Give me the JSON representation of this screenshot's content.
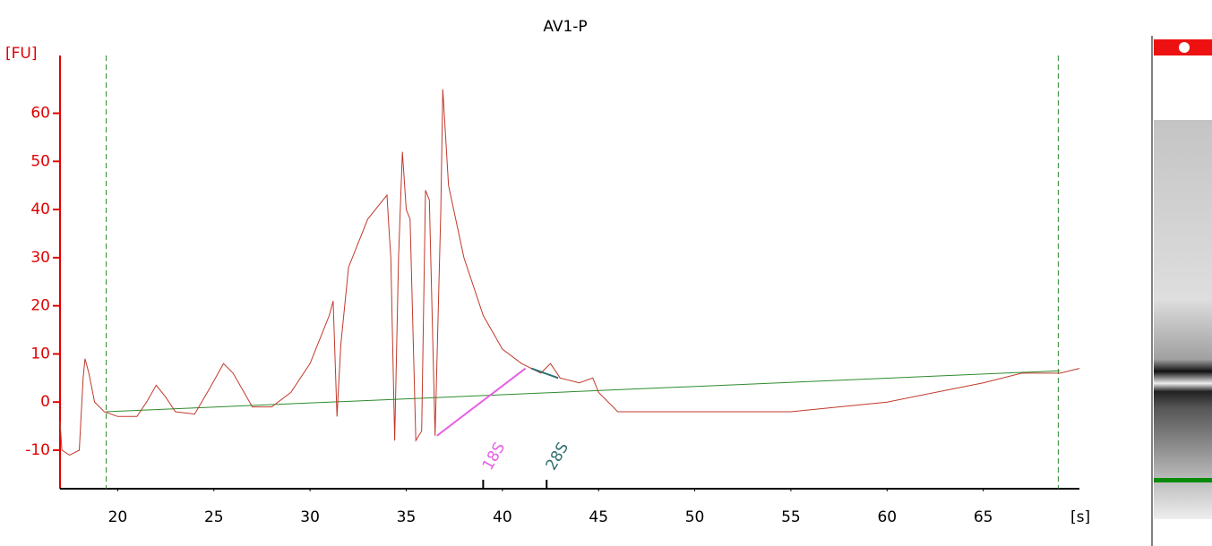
{
  "chart_data": {
    "type": "line",
    "title": "AV1-P",
    "xlabel": "[s]",
    "ylabel": "[FU]",
    "x": [
      17.0,
      17.1,
      17.5,
      18.0,
      18.2,
      18.3,
      18.5,
      18.8,
      19.3,
      20,
      21,
      21.5,
      22,
      22.5,
      23,
      24,
      24.8,
      25.5,
      26,
      27,
      28,
      29,
      30,
      31,
      31.2,
      31.4,
      31.6,
      32,
      33,
      33.8,
      34.0,
      34.1,
      34.2,
      34.4,
      34.6,
      34.8,
      35.0,
      35.2,
      35.5,
      35.8,
      36.0,
      36.2,
      36.5,
      36.8,
      36.9,
      37.2,
      38,
      39,
      40,
      41,
      41.5,
      42,
      42.5,
      43,
      44,
      44.7,
      45,
      46,
      47,
      50,
      55,
      60,
      65,
      67,
      69,
      70
    ],
    "values": [
      -4,
      -10,
      -11,
      -10,
      5,
      9,
      6,
      0,
      -2,
      -3,
      -3,
      0,
      3.5,
      1,
      -2,
      -2.5,
      3,
      8,
      6,
      -1,
      -1,
      2,
      8,
      18,
      21,
      -3,
      12,
      28,
      38,
      42,
      43,
      36,
      30,
      -8,
      30,
      52,
      40,
      38,
      -8,
      -6,
      44,
      42,
      -7,
      40,
      65,
      45,
      30,
      18,
      11,
      8,
      7,
      6,
      8,
      5,
      4,
      5,
      2,
      -2,
      -2,
      -2,
      -2,
      0,
      4,
      6,
      6,
      7
    ],
    "color": "#c0392b",
    "baseline": {
      "x": [
        19.4,
        69
      ],
      "values": [
        -2,
        6.5
      ],
      "color": "#2e8b2e"
    },
    "segments": [
      {
        "x": [
          36.6,
          41.2
        ],
        "values": [
          -7,
          7
        ],
        "color": "#e75fe7"
      },
      {
        "x": [
          41.5,
          42.9
        ],
        "values": [
          7,
          5
        ],
        "color": "#2f7070"
      }
    ],
    "region_x": [
      19.4,
      68.9
    ],
    "markers": [
      {
        "label": "18S",
        "x": 39,
        "color": "#e75fe7"
      },
      {
        "label": "28S",
        "x": 42.3,
        "color": "#2f7070"
      }
    ],
    "xlim": [
      17,
      70
    ],
    "ylim": [
      -18,
      72
    ],
    "xticks": [
      20,
      25,
      30,
      35,
      40,
      45,
      50,
      55,
      60,
      65
    ],
    "yticks": [
      -10,
      0,
      10,
      20,
      30,
      40,
      50,
      60
    ]
  }
}
